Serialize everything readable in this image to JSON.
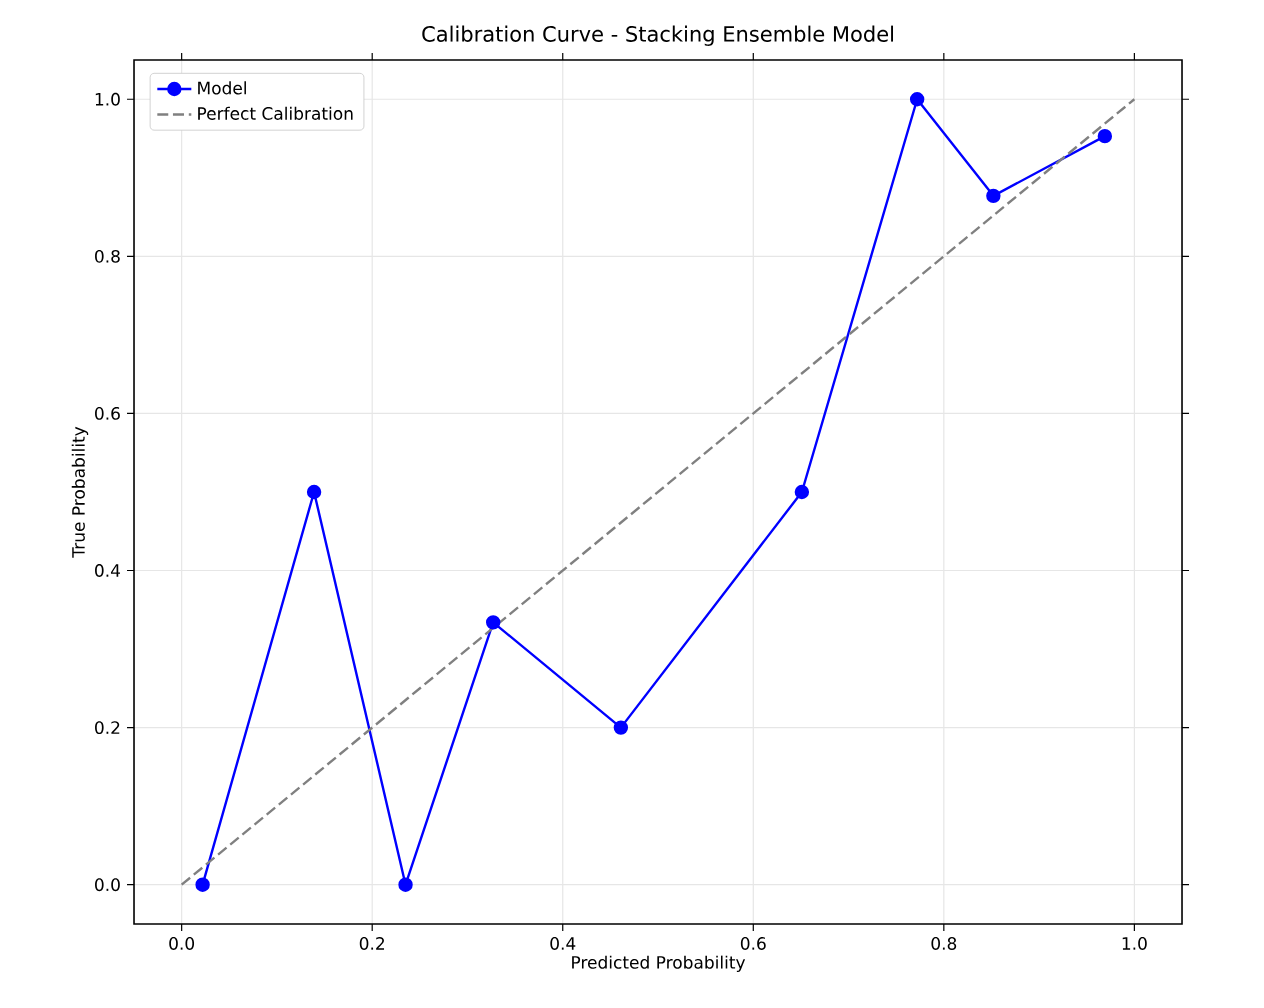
{
  "chart_data": {
    "type": "line",
    "title": "Calibration Curve - Stacking Ensemble Model",
    "xlabel": "Predicted Probability",
    "ylabel": "True Probability",
    "series": [
      {
        "name": "Model",
        "color": "#0000ff",
        "marker": "circle",
        "line_style": "solid",
        "x": [
          0.022,
          0.139,
          0.235,
          0.327,
          0.461,
          0.651,
          0.772,
          0.852,
          0.969
        ],
        "values": [
          0,
          0.5,
          0,
          0.334,
          0.2,
          0.5,
          1,
          0.877,
          0.953
        ]
      },
      {
        "name": "Perfect Calibration",
        "color": "#808080",
        "marker": "none",
        "line_style": "dashed",
        "x": [
          0,
          1
        ],
        "values": [
          0,
          1
        ]
      }
    ],
    "xlim": [
      -0.05,
      1.05
    ],
    "ylim": [
      -0.05,
      1.05
    ],
    "xticks": [
      {
        "value": 0,
        "label": "0.0"
      },
      {
        "value": 0.2,
        "label": "0.2"
      },
      {
        "value": 0.4,
        "label": "0.4"
      },
      {
        "value": 0.6,
        "label": "0.6"
      },
      {
        "value": 0.8,
        "label": "0.8"
      },
      {
        "value": 1,
        "label": "1.0"
      }
    ],
    "yticks": [
      {
        "value": 0,
        "label": "0.0"
      },
      {
        "value": 0.2,
        "label": "0.2"
      },
      {
        "value": 0.4,
        "label": "0.4"
      },
      {
        "value": 0.6,
        "label": "0.6"
      },
      {
        "value": 0.8,
        "label": "0.8"
      },
      {
        "value": 1,
        "label": "1.0"
      }
    ],
    "grid": true,
    "legend": "top left"
  }
}
